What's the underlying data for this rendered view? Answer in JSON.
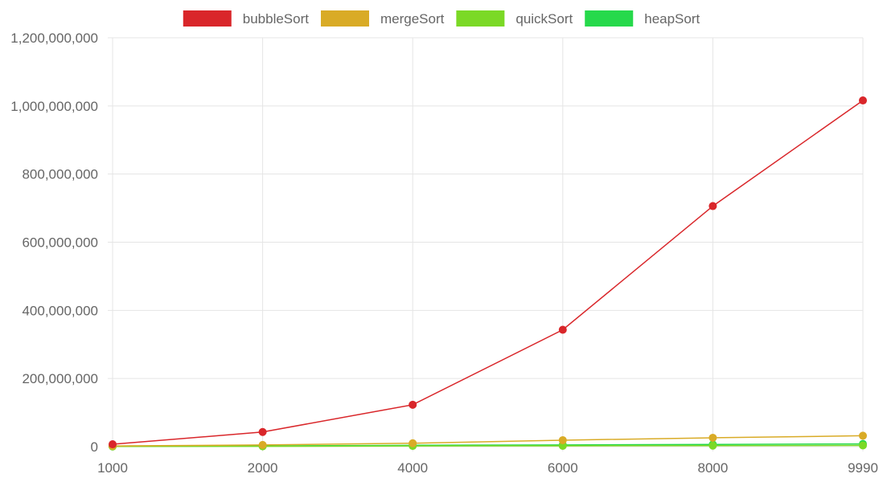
{
  "chart_data": {
    "type": "line",
    "title": "",
    "xlabel": "",
    "ylabel": "",
    "categories": [
      "1000",
      "2000",
      "4000",
      "6000",
      "8000",
      "9990"
    ],
    "yticks": [
      "0",
      "200,000,000",
      "400,000,000",
      "600,000,000",
      "800,000,000",
      "1,000,000,000",
      "1,200,000,000"
    ],
    "ylim": [
      0,
      1200000000
    ],
    "grid": true,
    "legend_position": "top",
    "series": [
      {
        "name": "bubbleSort",
        "color": "#d9262a",
        "values": [
          7000000,
          43000000,
          123000000,
          343000000,
          706000000,
          1016000000
        ]
      },
      {
        "name": "mergeSort",
        "color": "#d9ab26",
        "values": [
          2000000,
          5000000,
          10000000,
          19000000,
          26000000,
          32000000
        ]
      },
      {
        "name": "quickSort",
        "color": "#7bd926",
        "values": [
          500000,
          1000000,
          2000000,
          2500000,
          3000000,
          3500000
        ]
      },
      {
        "name": "heapSort",
        "color": "#26d94b",
        "values": [
          1000000,
          2000000,
          4000000,
          5000000,
          6500000,
          8000000
        ]
      }
    ]
  }
}
